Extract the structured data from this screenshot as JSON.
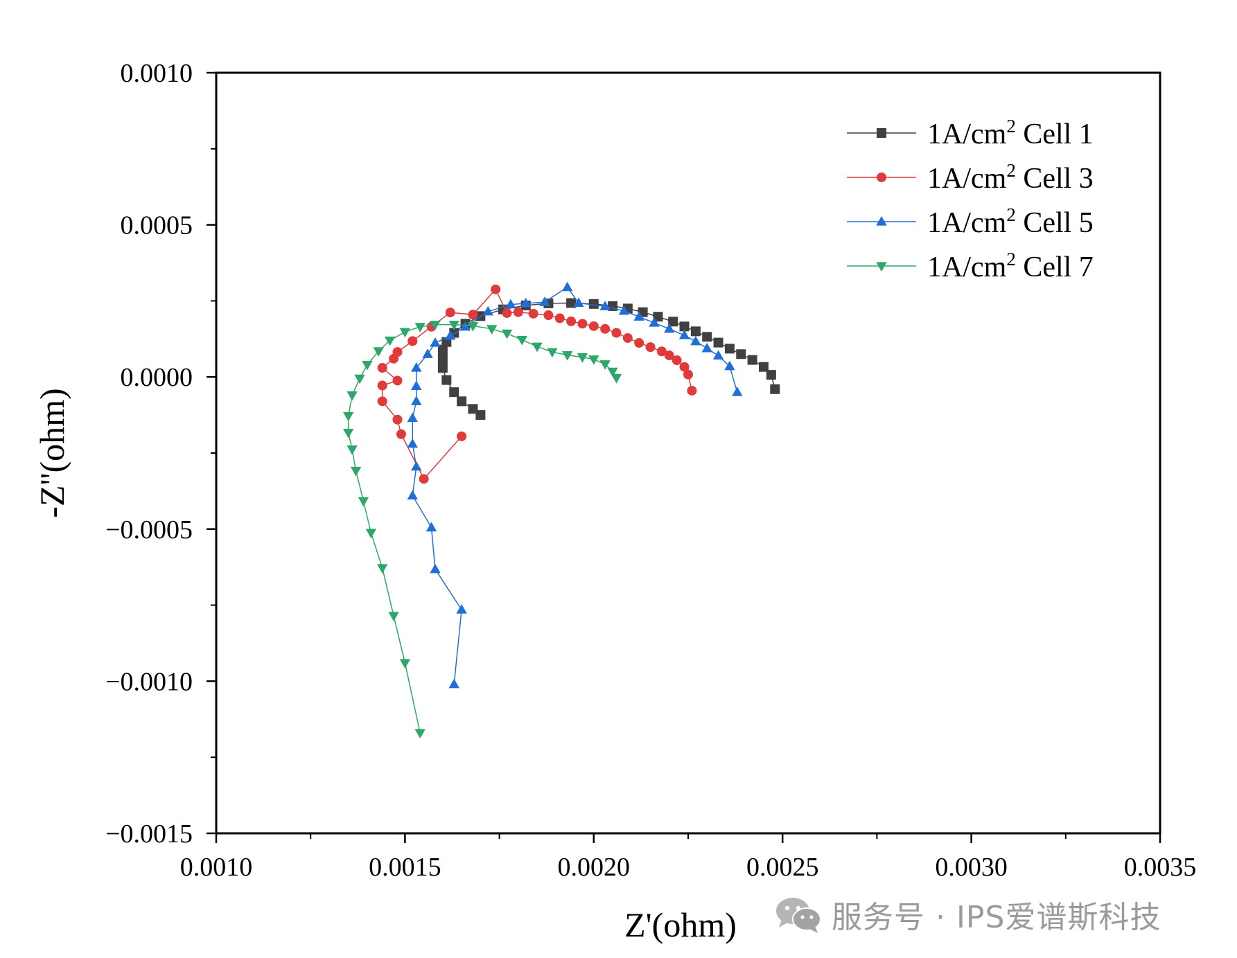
{
  "chart_data": {
    "type": "scatter",
    "title": "",
    "xlabel": "Z'(ohm)",
    "ylabel": "-Z''(ohm)",
    "xlim": [
      0.001,
      0.0035
    ],
    "ylim": [
      -0.0015,
      0.001
    ],
    "xticks": [
      "0.0010",
      "0.0015",
      "0.0020",
      "0.0025",
      "0.0030",
      "0.0035"
    ],
    "yticks": [
      "0.0010",
      "0.0005",
      "0.0000",
      "−0.0005",
      "−0.0010",
      "−0.0015"
    ],
    "grid": false,
    "legend_position": "top-right",
    "series": [
      {
        "name": "1A/cm² Cell 1",
        "legend_main": "1A/cm",
        "legend_sup": "2",
        "legend_tail": " Cell 1",
        "color": "#404040",
        "marker": "square",
        "x": [
          0.0017,
          0.00168,
          0.00165,
          0.00163,
          0.00161,
          0.0016,
          0.0016,
          0.0016,
          0.00161,
          0.00163,
          0.00166,
          0.0017,
          0.00176,
          0.00182,
          0.00188,
          0.00194,
          0.002,
          0.00205,
          0.00209,
          0.00213,
          0.00217,
          0.00221,
          0.00224,
          0.00227,
          0.0023,
          0.00233,
          0.00236,
          0.00239,
          0.00242,
          0.00245,
          0.00247,
          0.00248
        ],
        "y": [
          -0.000125,
          -0.000105,
          -8e-05,
          -5e-05,
          -1e-05,
          3e-05,
          6e-05,
          9e-05,
          0.000115,
          0.000145,
          0.000175,
          0.0002,
          0.000222,
          0.000235,
          0.000242,
          0.000243,
          0.00024,
          0.000233,
          0.000225,
          0.000213,
          0.000198,
          0.000182,
          0.000166,
          0.00015,
          0.000132,
          0.000113,
          9.3e-05,
          7.5e-05,
          5.6e-05,
          3.3e-05,
          7e-06,
          -4e-05
        ]
      },
      {
        "name": "1A/cm² Cell 3",
        "legend_main": "1A/cm",
        "legend_sup": "2",
        "legend_tail": " Cell 3",
        "color": "#e03a3a",
        "marker": "circle",
        "x": [
          0.00165,
          0.00155,
          0.00149,
          0.00148,
          0.00144,
          0.00144,
          0.00148,
          0.00144,
          0.00147,
          0.00148,
          0.00152,
          0.00157,
          0.00162,
          0.00168,
          0.00174,
          0.00177,
          0.0018,
          0.00184,
          0.00188,
          0.00191,
          0.00194,
          0.00197,
          0.002,
          0.00203,
          0.00206,
          0.00209,
          0.00212,
          0.00215,
          0.00218,
          0.0022,
          0.00222,
          0.00224,
          0.00225,
          0.00226
        ],
        "y": [
          -0.000195,
          -0.000335,
          -0.000188,
          -0.00014,
          -8e-05,
          -2.8e-05,
          -1.2e-05,
          3e-05,
          6e-05,
          8.2e-05,
          0.000118,
          0.000165,
          0.000212,
          0.000205,
          0.000288,
          0.00021,
          0.000213,
          0.000208,
          0.000203,
          0.000193,
          0.000183,
          0.000175,
          0.000167,
          0.000158,
          0.000145,
          0.000128,
          0.000112,
          9.8e-05,
          8.4e-05,
          7.1e-05,
          5.5e-05,
          3.3e-05,
          8e-06,
          -4.5e-05
        ]
      },
      {
        "name": "1A/cm² Cell 5",
        "legend_main": "1A/cm",
        "legend_sup": "2",
        "legend_tail": " Cell 5",
        "color": "#1f6fd6",
        "marker": "triangle-up",
        "x": [
          0.00163,
          0.00165,
          0.00158,
          0.00157,
          0.00152,
          0.00153,
          0.00152,
          0.00152,
          0.00153,
          0.00153,
          0.00153,
          0.00156,
          0.00158,
          0.00162,
          0.00166,
          0.00172,
          0.00178,
          0.00182,
          0.00187,
          0.00193,
          0.00196,
          0.00203,
          0.00208,
          0.00212,
          0.00216,
          0.0022,
          0.00224,
          0.00227,
          0.0023,
          0.00233,
          0.00236,
          0.00238
        ],
        "y": [
          -0.00101,
          -0.000765,
          -0.000632,
          -0.000495,
          -0.00039,
          -0.000295,
          -0.00022,
          -0.000135,
          -8e-05,
          -3e-05,
          3e-05,
          7.5e-05,
          0.000112,
          0.000135,
          0.000165,
          0.000215,
          0.000238,
          0.000242,
          0.000246,
          0.000295,
          0.000243,
          0.000232,
          0.000217,
          0.000198,
          0.000178,
          0.000158,
          0.000137,
          0.000117,
          9.4e-05,
          7e-05,
          3.5e-05,
          -5e-05
        ]
      },
      {
        "name": "1A/cm² Cell 7",
        "legend_main": "1A/cm",
        "legend_sup": "2",
        "legend_tail": " Cell 7",
        "color": "#2ea86a",
        "marker": "triangle-down",
        "x": [
          0.00154,
          0.0015,
          0.00147,
          0.00144,
          0.00141,
          0.00139,
          0.00137,
          0.00136,
          0.00135,
          0.00135,
          0.00136,
          0.00138,
          0.0014,
          0.00143,
          0.00146,
          0.0015,
          0.00154,
          0.00158,
          0.00163,
          0.00168,
          0.00173,
          0.00177,
          0.00181,
          0.00185,
          0.00189,
          0.00193,
          0.00197,
          0.002,
          0.00203,
          0.00205,
          0.00206
        ],
        "y": [
          -0.00117,
          -0.00094,
          -0.000785,
          -0.000628,
          -0.000512,
          -0.000408,
          -0.000308,
          -0.000238,
          -0.000183,
          -0.000128,
          -6e-05,
          -5e-06,
          4e-05,
          8.5e-05,
          0.00012,
          0.000148,
          0.000165,
          0.000172,
          0.000172,
          0.000168,
          0.000158,
          0.000143,
          0.000122,
          0.0001,
          8.2e-05,
          7.2e-05,
          6.5e-05,
          5.8e-05,
          4.2e-05,
          1.8e-05,
          -3e-06
        ]
      }
    ]
  },
  "watermark": {
    "icon": "wechat-icon",
    "text": "服务号 · IPS爱谱斯科技"
  }
}
